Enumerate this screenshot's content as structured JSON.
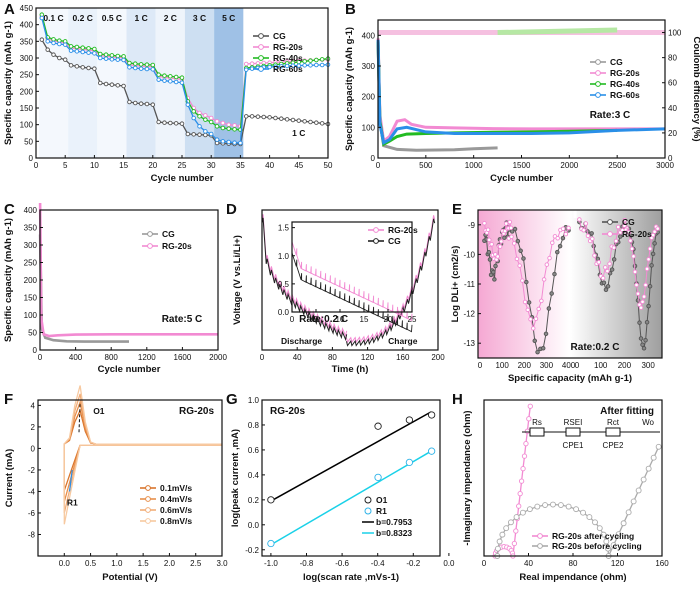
{
  "chart_data": [
    {
      "panel": "A",
      "type": "line",
      "xlabel": "Cycle number",
      "ylabel": "Specific capacity (mAh g-1)",
      "xlim": [
        0,
        50
      ],
      "ylim": [
        0,
        450
      ],
      "xticks": [
        0,
        5,
        10,
        15,
        20,
        25,
        30,
        35,
        40,
        45,
        50
      ],
      "yticks": [
        0,
        50,
        100,
        150,
        200,
        250,
        300,
        350,
        400,
        450
      ],
      "rate_bands": [
        {
          "label": "0.1 C",
          "from": 0,
          "to": 5
        },
        {
          "label": "0.2 C",
          "from": 5,
          "to": 10
        },
        {
          "label": "0.5 C",
          "from": 10,
          "to": 15
        },
        {
          "label": "1 C",
          "from": 15,
          "to": 20
        },
        {
          "label": "2 C",
          "from": 20,
          "to": 25
        },
        {
          "label": "3 C",
          "from": 25,
          "to": 30
        },
        {
          "label": "5 C",
          "from": 30,
          "to": 35
        }
      ],
      "annotation": "1 C",
      "series": [
        {
          "name": "CG",
          "color": "#555555",
          "y": [
            355,
            325,
            310,
            300,
            295,
            278,
            275,
            272,
            270,
            268,
            225,
            222,
            220,
            218,
            216,
            168,
            165,
            163,
            162,
            160,
            108,
            106,
            105,
            104,
            103,
            72,
            71,
            70,
            69,
            68,
            45,
            44,
            43,
            42,
            42,
            125,
            125,
            124,
            123,
            122,
            120,
            118,
            116,
            114,
            112,
            110,
            108,
            106,
            104,
            102
          ]
        },
        {
          "name": "RG-20s",
          "color": "#f28ad2",
          "y": [
            425,
            358,
            352,
            348,
            345,
            330,
            328,
            326,
            324,
            322,
            308,
            305,
            303,
            302,
            300,
            280,
            278,
            276,
            275,
            274,
            245,
            242,
            240,
            238,
            236,
            180,
            150,
            135,
            128,
            120,
            110,
            105,
            100,
            98,
            95,
            282,
            283,
            284,
            285,
            286,
            287,
            288,
            289,
            290,
            291,
            292,
            293,
            294,
            295,
            295
          ]
        },
        {
          "name": "RG-40s",
          "color": "#22bb22",
          "y": [
            430,
            362,
            356,
            352,
            350,
            335,
            333,
            331,
            329,
            327,
            312,
            310,
            308,
            306,
            305,
            285,
            283,
            281,
            280,
            279,
            250,
            247,
            245,
            243,
            241,
            170,
            140,
            125,
            115,
            108,
            95,
            90,
            88,
            86,
            85,
            270,
            272,
            274,
            276,
            278,
            280,
            282,
            284,
            286,
            288,
            290,
            292,
            294,
            296,
            298
          ]
        },
        {
          "name": "RG-60s",
          "color": "#2a8fe8",
          "y": [
            420,
            350,
            345,
            342,
            340,
            322,
            320,
            318,
            316,
            314,
            300,
            298,
            296,
            295,
            294,
            272,
            270,
            268,
            267,
            266,
            235,
            232,
            230,
            228,
            226,
            160,
            120,
            95,
            80,
            72,
            55,
            50,
            48,
            46,
            45,
            265,
            268,
            270,
            272,
            273,
            274,
            275,
            276,
            277,
            277,
            278,
            278,
            279,
            279,
            280
          ]
        }
      ]
    },
    {
      "panel": "B",
      "type": "line",
      "xlabel": "Cycle number",
      "ylabel": "Specific capacity (mAh g-1)",
      "y2label": "Coulomb efficiency (%)",
      "xlim": [
        0,
        3000
      ],
      "ylim": [
        0,
        450
      ],
      "y2lim": [
        0,
        110
      ],
      "xticks": [
        0,
        500,
        1000,
        1500,
        2000,
        2500,
        3000
      ],
      "yticks": [
        0,
        100,
        200,
        300,
        400
      ],
      "y2ticks": [
        0,
        20,
        40,
        60,
        80,
        100
      ],
      "annotation": "Rate:3 C",
      "series": [
        {
          "name": "CG",
          "color": "#999999",
          "x": [
            1,
            20,
            60,
            120,
            200,
            400,
            600,
            800,
            1000,
            1250
          ],
          "y": [
            370,
            120,
            40,
            35,
            28,
            25,
            26,
            27,
            30,
            33
          ]
        },
        {
          "name": "RG-20s",
          "color": "#f28ad2",
          "x": [
            1,
            20,
            60,
            120,
            200,
            280,
            350,
            500,
            800,
            1200,
            1600,
            2000,
            2500,
            3000
          ],
          "y": [
            390,
            140,
            55,
            70,
            120,
            125,
            110,
            100,
            98,
            96,
            95,
            95,
            95,
            95
          ]
        },
        {
          "name": "RG-40s",
          "color": "#22bb22",
          "x": [
            1,
            20,
            60,
            120,
            200,
            300,
            500,
            800,
            1200,
            1600,
            2000,
            2500
          ],
          "y": [
            380,
            120,
            45,
            55,
            70,
            78,
            80,
            82,
            84,
            85,
            87,
            90
          ]
        },
        {
          "name": "RG-60s",
          "color": "#2a8fe8",
          "x": [
            1,
            20,
            60,
            120,
            200,
            300,
            500,
            800,
            1200,
            1600,
            2000,
            2500,
            3000
          ],
          "y": [
            385,
            110,
            50,
            60,
            95,
            100,
            85,
            80,
            80,
            80,
            82,
            90,
            95
          ]
        }
      ],
      "ce_series": [
        {
          "name": "CG",
          "color": "#c8c8c8",
          "x": [
            0,
            1250
          ],
          "y": [
            100,
            100
          ]
        },
        {
          "name": "RG-20s",
          "color": "#f5c0e0",
          "x": [
            0,
            3000
          ],
          "y": [
            100,
            100
          ]
        },
        {
          "name": "RG-40s",
          "color": "#b6e8a4",
          "x": [
            1250,
            2500
          ],
          "y": [
            100,
            102
          ]
        }
      ]
    },
    {
      "panel": "C",
      "type": "line",
      "xlabel": "Cycle number",
      "ylabel": "Specific capacity (mAh g-1)",
      "xlim": [
        0,
        2000
      ],
      "ylim": [
        0,
        400
      ],
      "xticks": [
        0,
        400,
        800,
        1200,
        1600,
        2000
      ],
      "yticks": [
        0,
        50,
        100,
        150,
        200,
        250,
        300,
        350,
        400
      ],
      "annotation": "Rate:5 C",
      "series": [
        {
          "name": "CG",
          "color": "#999999",
          "x": [
            1,
            20,
            60,
            150,
            300,
            500,
            800,
            1000
          ],
          "y": [
            330,
            60,
            35,
            28,
            25,
            24,
            24,
            24
          ]
        },
        {
          "name": "RG-20s",
          "color": "#f28ad2",
          "x": [
            1,
            15,
            40,
            100,
            200,
            400,
            800,
            1200,
            1600,
            2000
          ],
          "y": [
            420,
            90,
            45,
            40,
            42,
            44,
            45,
            45,
            45,
            45
          ]
        }
      ]
    },
    {
      "panel": "D",
      "type": "line",
      "xlabel": "Time (h)",
      "ylabel": "Voltage (V vs.Li/Li+)",
      "xlim": [
        0,
        200
      ],
      "ylim": [
        0,
        1.6
      ],
      "xticks": [
        0,
        40,
        80,
        120,
        160,
        200
      ],
      "labels": [
        "Discharge",
        "Charge"
      ],
      "annotation": "Rate:0.2 C",
      "inset": {
        "xlim": [
          0,
          25
        ],
        "xticks": [
          0,
          5,
          10,
          15,
          20,
          25
        ],
        "yticks": [
          0.0,
          0.5,
          1.0,
          1.5
        ]
      },
      "series": [
        {
          "name": "RG-20s",
          "color": "#f28ad2"
        },
        {
          "name": "CG",
          "color": "#222222"
        }
      ]
    },
    {
      "panel": "E",
      "type": "line",
      "xlabel": "Specific capacity (mAh g-1)",
      "ylabel": "Log DLi+ (cm2/s)",
      "ylim": [
        -13.5,
        -8.5
      ],
      "yticks": [
        -9,
        -10,
        -11,
        -12,
        -13
      ],
      "xticks_left": [
        0,
        100,
        200,
        300,
        400
      ],
      "xticks_right": [
        0,
        100,
        200,
        300
      ],
      "annotation": "Rate:0.2 C",
      "series": [
        {
          "name": "CG",
          "color": "#555555"
        },
        {
          "name": "RG-20s",
          "color": "#f28ad2"
        }
      ]
    },
    {
      "panel": "F",
      "type": "line",
      "xlabel": "Potential (V)",
      "ylabel": "Current (mA)",
      "xlim": [
        -0.5,
        3.0
      ],
      "ylim": [
        -10,
        4.5
      ],
      "xticks": [
        0.0,
        0.5,
        1.0,
        1.5,
        2.0,
        2.5,
        3.0
      ],
      "yticks": [
        4,
        2,
        0,
        -2,
        -4,
        -6,
        -8
      ],
      "title": "RG-20s",
      "peaks": [
        "O1",
        "R1"
      ],
      "series": [
        {
          "name": "0.1mV/s",
          "color": "#d9752c"
        },
        {
          "name": "0.4mV/s",
          "color": "#e88f4b"
        },
        {
          "name": "0.6mV/s",
          "color": "#f2ad78"
        },
        {
          "name": "0.8mV/s",
          "color": "#f7c9a0"
        }
      ]
    },
    {
      "panel": "G",
      "type": "scatter",
      "xlabel": "log(scan rate ,mVs-1)",
      "ylabel": "log(peak current ,mA)",
      "xlim": [
        -1.05,
        -0.05
      ],
      "ylim": [
        -0.25,
        1.0
      ],
      "xticks": [
        -1.0,
        -0.8,
        -0.6,
        -0.4,
        -0.2,
        0.0
      ],
      "yticks": [
        -0.2,
        0.0,
        0.2,
        0.4,
        0.6,
        0.8,
        1.0
      ],
      "title": "RG-20s",
      "series": [
        {
          "name": "O1",
          "color": "#222222",
          "x": [
            -1.0,
            -0.398,
            -0.222,
            -0.097
          ],
          "y": [
            0.2,
            0.79,
            0.84,
            0.88
          ]
        },
        {
          "name": "R1",
          "color": "#2fb3e8",
          "x": [
            -1.0,
            -0.398,
            -0.222,
            -0.097
          ],
          "y": [
            -0.15,
            0.38,
            0.5,
            0.59
          ]
        }
      ],
      "fits": [
        {
          "label": "b=0.7953",
          "color": "#000000",
          "x": [
            -1.0,
            -0.1
          ],
          "y": [
            0.19,
            0.905
          ]
        },
        {
          "label": "b=0.8323",
          "color": "#1ad1e8",
          "x": [
            -1.0,
            -0.1
          ],
          "y": [
            -0.16,
            0.59
          ]
        }
      ]
    },
    {
      "panel": "H",
      "type": "line",
      "xlabel": "Real impendance (ohm)",
      "ylabel": "-Imaginary impendance (ohm)",
      "xlim": [
        0,
        160
      ],
      "ylim": [
        0,
        100
      ],
      "xticks": [
        0,
        40,
        80,
        120,
        160
      ],
      "title": "After fitting",
      "circuit": [
        "Rs",
        "RSEI",
        "Rct",
        "Wo",
        "CPE1",
        "CPE2"
      ],
      "series": [
        {
          "name": "RG-20s after cycling",
          "color": "#f28ad2"
        },
        {
          "name": "RG-20s before cycling",
          "color": "#aaaaaa"
        }
      ]
    }
  ],
  "panels": {
    "A": {
      "letter": "A"
    },
    "B": {
      "letter": "B"
    },
    "C": {
      "letter": "C"
    },
    "D": {
      "letter": "D"
    },
    "E": {
      "letter": "E"
    },
    "F": {
      "letter": "F"
    },
    "G": {
      "letter": "G"
    },
    "H": {
      "letter": "H"
    }
  }
}
